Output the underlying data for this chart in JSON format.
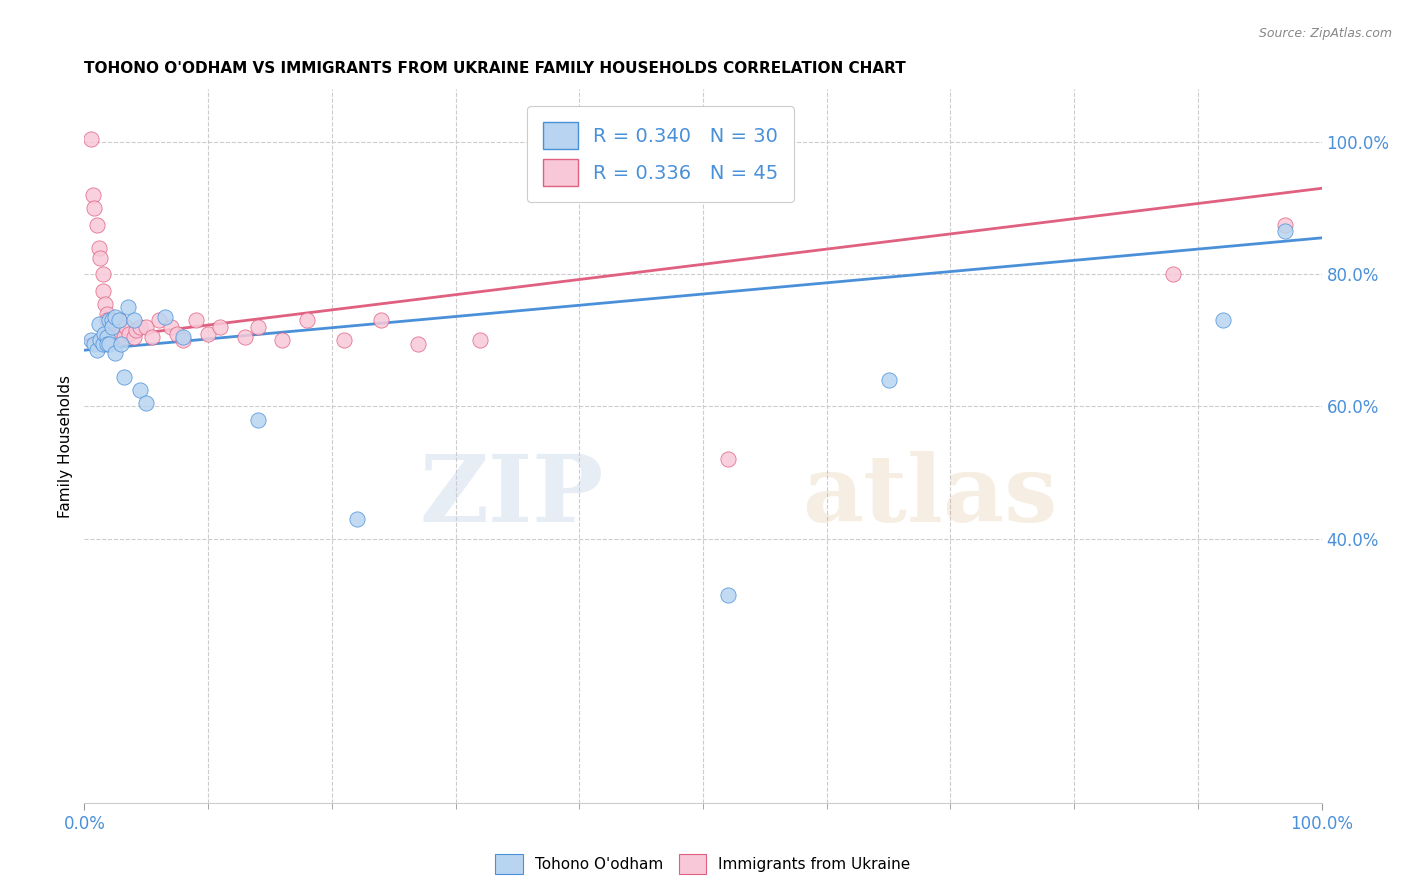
{
  "title": "TOHONO O'ODHAM VS IMMIGRANTS FROM UKRAINE FAMILY HOUSEHOLDS CORRELATION CHART",
  "source": "Source: ZipAtlas.com",
  "ylabel": "Family Households",
  "xlim": [
    0.0,
    1.0
  ],
  "ylim": [
    0.0,
    1.08
  ],
  "R_blue": 0.34,
  "N_blue": 30,
  "R_pink": 0.336,
  "N_pink": 45,
  "blue_scatter_color": "#b8d4f0",
  "pink_scatter_color": "#f8c8d8",
  "line_blue": "#4a90d9",
  "line_pink": "#e06080",
  "watermark_zip": "ZIP",
  "watermark_atlas": "atlas",
  "grid_color": "#cccccc",
  "tohono_x": [
    0.005,
    0.008,
    0.01,
    0.012,
    0.013,
    0.015,
    0.016,
    0.018,
    0.018,
    0.02,
    0.02,
    0.022,
    0.022,
    0.025,
    0.025,
    0.028,
    0.03,
    0.032,
    0.035,
    0.04,
    0.045,
    0.05,
    0.065,
    0.08,
    0.14,
    0.22,
    0.52,
    0.65,
    0.92,
    0.97
  ],
  "tohono_y": [
    0.7,
    0.695,
    0.685,
    0.725,
    0.7,
    0.695,
    0.71,
    0.705,
    0.695,
    0.73,
    0.695,
    0.73,
    0.72,
    0.735,
    0.68,
    0.73,
    0.695,
    0.645,
    0.75,
    0.73,
    0.625,
    0.605,
    0.735,
    0.705,
    0.58,
    0.43,
    0.315,
    0.64,
    0.73,
    0.865
  ],
  "ukraine_x": [
    0.005,
    0.007,
    0.008,
    0.01,
    0.012,
    0.013,
    0.015,
    0.015,
    0.017,
    0.018,
    0.018,
    0.02,
    0.02,
    0.022,
    0.022,
    0.025,
    0.025,
    0.028,
    0.03,
    0.032,
    0.034,
    0.036,
    0.04,
    0.042,
    0.045,
    0.05,
    0.055,
    0.06,
    0.07,
    0.075,
    0.08,
    0.09,
    0.1,
    0.11,
    0.13,
    0.14,
    0.16,
    0.18,
    0.21,
    0.24,
    0.27,
    0.32,
    0.52,
    0.88,
    0.97
  ],
  "ukraine_y": [
    1.005,
    0.92,
    0.9,
    0.875,
    0.84,
    0.825,
    0.8,
    0.775,
    0.755,
    0.74,
    0.73,
    0.72,
    0.705,
    0.73,
    0.715,
    0.72,
    0.705,
    0.73,
    0.71,
    0.705,
    0.72,
    0.71,
    0.705,
    0.715,
    0.72,
    0.72,
    0.705,
    0.73,
    0.72,
    0.71,
    0.7,
    0.73,
    0.71,
    0.72,
    0.705,
    0.72,
    0.7,
    0.73,
    0.7,
    0.73,
    0.695,
    0.7,
    0.52,
    0.8,
    0.875
  ],
  "blue_line_x0": 0.0,
  "blue_line_y0": 0.685,
  "blue_line_x1": 1.0,
  "blue_line_y1": 0.855,
  "pink_line_x0": 0.0,
  "pink_line_y0": 0.7,
  "pink_line_x1": 1.0,
  "pink_line_y1": 0.93,
  "yticks": [
    0.4,
    0.6,
    0.8,
    1.0
  ],
  "ytick_labels": [
    "40.0%",
    "60.0%",
    "80.0%",
    "100.0%"
  ],
  "xticks_minor": [
    0.1,
    0.2,
    0.3,
    0.4,
    0.5,
    0.6,
    0.7,
    0.8,
    0.9
  ]
}
